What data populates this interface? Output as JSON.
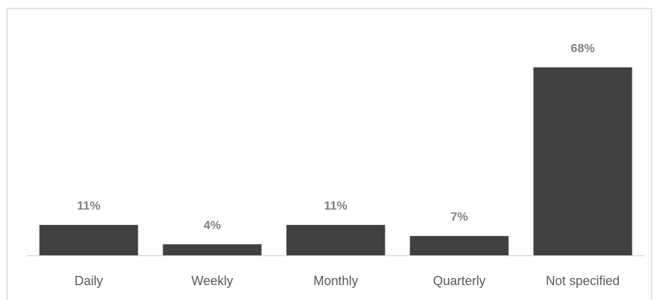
{
  "chart_data": {
    "type": "bar",
    "categories": [
      "Daily",
      "Weekly",
      "Monthly",
      "Quarterly",
      "Not specified"
    ],
    "values": [
      11,
      4,
      11,
      7,
      68
    ],
    "value_labels": [
      "11%",
      "4%",
      "11%",
      "7%",
      "68%"
    ],
    "color": "#404040"
  }
}
